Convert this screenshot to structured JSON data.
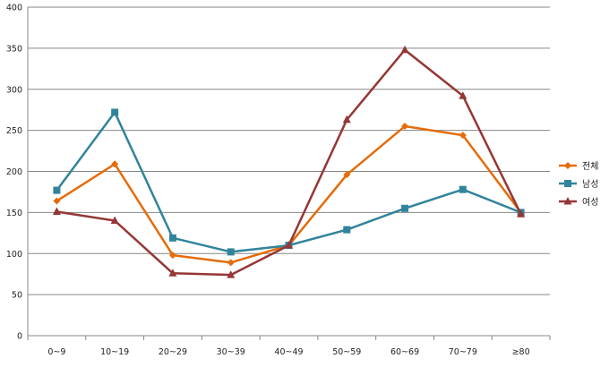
{
  "chart_data": {
    "type": "line",
    "title": "",
    "xlabel": "",
    "ylabel": "",
    "categories": [
      "0~9",
      "10~19",
      "20~29",
      "30~39",
      "40~49",
      "50~59",
      "60~69",
      "70~79",
      "≥80"
    ],
    "ylim": [
      0,
      400
    ],
    "yticks": [
      0,
      50,
      100,
      150,
      200,
      250,
      300,
      350,
      400
    ],
    "grid": true,
    "legend_position": "right",
    "series": [
      {
        "name": "전체",
        "color": "#E46C0A",
        "marker": "diamond",
        "values": [
          164,
          209,
          98,
          89,
          110,
          196,
          255,
          244,
          150
        ]
      },
      {
        "name": "남성",
        "color": "#31849B",
        "marker": "square",
        "values": [
          177,
          272,
          119,
          102,
          110,
          129,
          155,
          178,
          150
        ]
      },
      {
        "name": "여성",
        "color": "#953735",
        "marker": "triangle",
        "values": [
          151,
          140,
          76,
          74,
          110,
          263,
          348,
          292,
          148
        ]
      }
    ]
  }
}
